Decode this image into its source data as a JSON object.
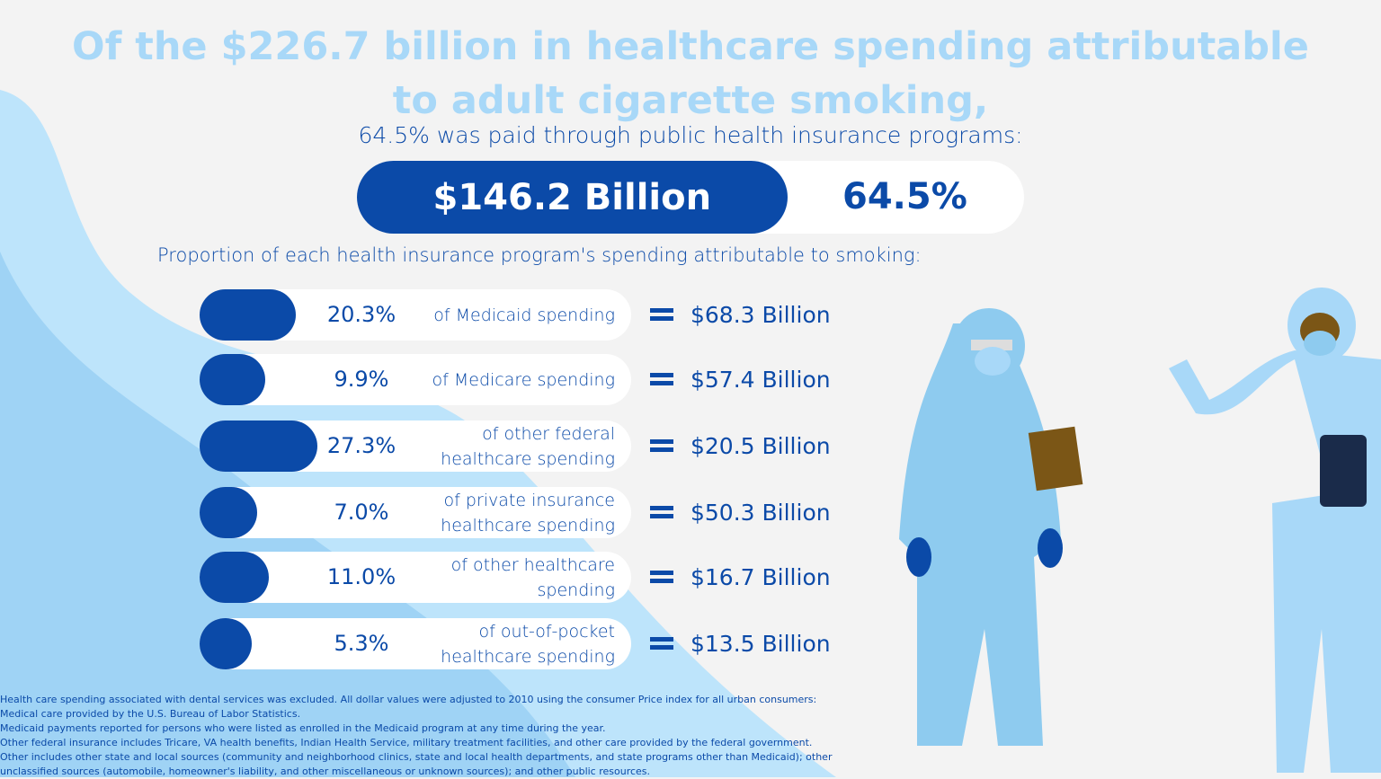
{
  "title_line1": "Of the $226.7 billion in healthcare spending attributable",
  "title_line2": "to adult cigarette smoking,",
  "subtitle": "64.5% was paid through public health insurance programs:",
  "public": {
    "amount": "$146.2 Billion",
    "percent_label": "64.5%",
    "percent": 64.5
  },
  "proportion_heading": "Proportion of each health insurance program's spending attributable to smoking:",
  "rows": [
    {
      "pct": "20.3%",
      "value": 20.3,
      "desc": "of Medicaid spending",
      "amount": "$68.3 Billion"
    },
    {
      "pct": "9.9%",
      "value": 9.9,
      "desc": "of Medicare spending",
      "amount": "$57.4 Billion"
    },
    {
      "pct": "27.3%",
      "value": 27.3,
      "desc": "of other federal healthcare spending",
      "amount": "$20.5 Billion"
    },
    {
      "pct": "7.0%",
      "value": 7.0,
      "desc": "of private insurance healthcare spending",
      "amount": "$50.3 Billion"
    },
    {
      "pct": "11.0%",
      "value": 11.0,
      "desc": "of other healthcare spending",
      "amount": "$16.7 Billion"
    },
    {
      "pct": "5.3%",
      "value": 5.3,
      "desc": "of out-of-pocket healthcare spending",
      "amount": "$13.5 Billion"
    }
  ],
  "notes": [
    "Health care spending associated with dental services was excluded. All dollar values were adjusted to 2010 using the consumer Price index for all urban consumers: Medical care provided by the U.S. Bureau of Labor Statistics.",
    "Medicaid payments reported for persons who were listed as enrolled in the Medicaid program at any time during the year.",
    "Other federal insurance includes Tricare, VA health benefits, Indian Health Service, military treatment facilities, and other care provided by the federal government.",
    "Other includes other state and local sources (community and neighborhood clinics, state and local health departments, and state programs other than Medicaid); other unclassified sources (automobile, homeowner's liability, and other miscellaneous or unknown sources); and other public resources."
  ],
  "colors": {
    "dark_blue": "#0b4aa8",
    "light_blue": "#a8d8f8",
    "background": "#f3f3f3"
  },
  "chart_data": {
    "type": "bar",
    "categories": [
      "Medicaid",
      "Medicare",
      "Other federal",
      "Private insurance",
      "Other",
      "Out-of-pocket"
    ],
    "values": [
      20.3,
      9.9,
      27.3,
      7.0,
      11.0,
      5.3
    ],
    "amounts": [
      "$68.3 Billion",
      "$57.4 Billion",
      "$20.5 Billion",
      "$50.3 Billion",
      "$16.7 Billion",
      "$13.5 Billion"
    ]
  }
}
